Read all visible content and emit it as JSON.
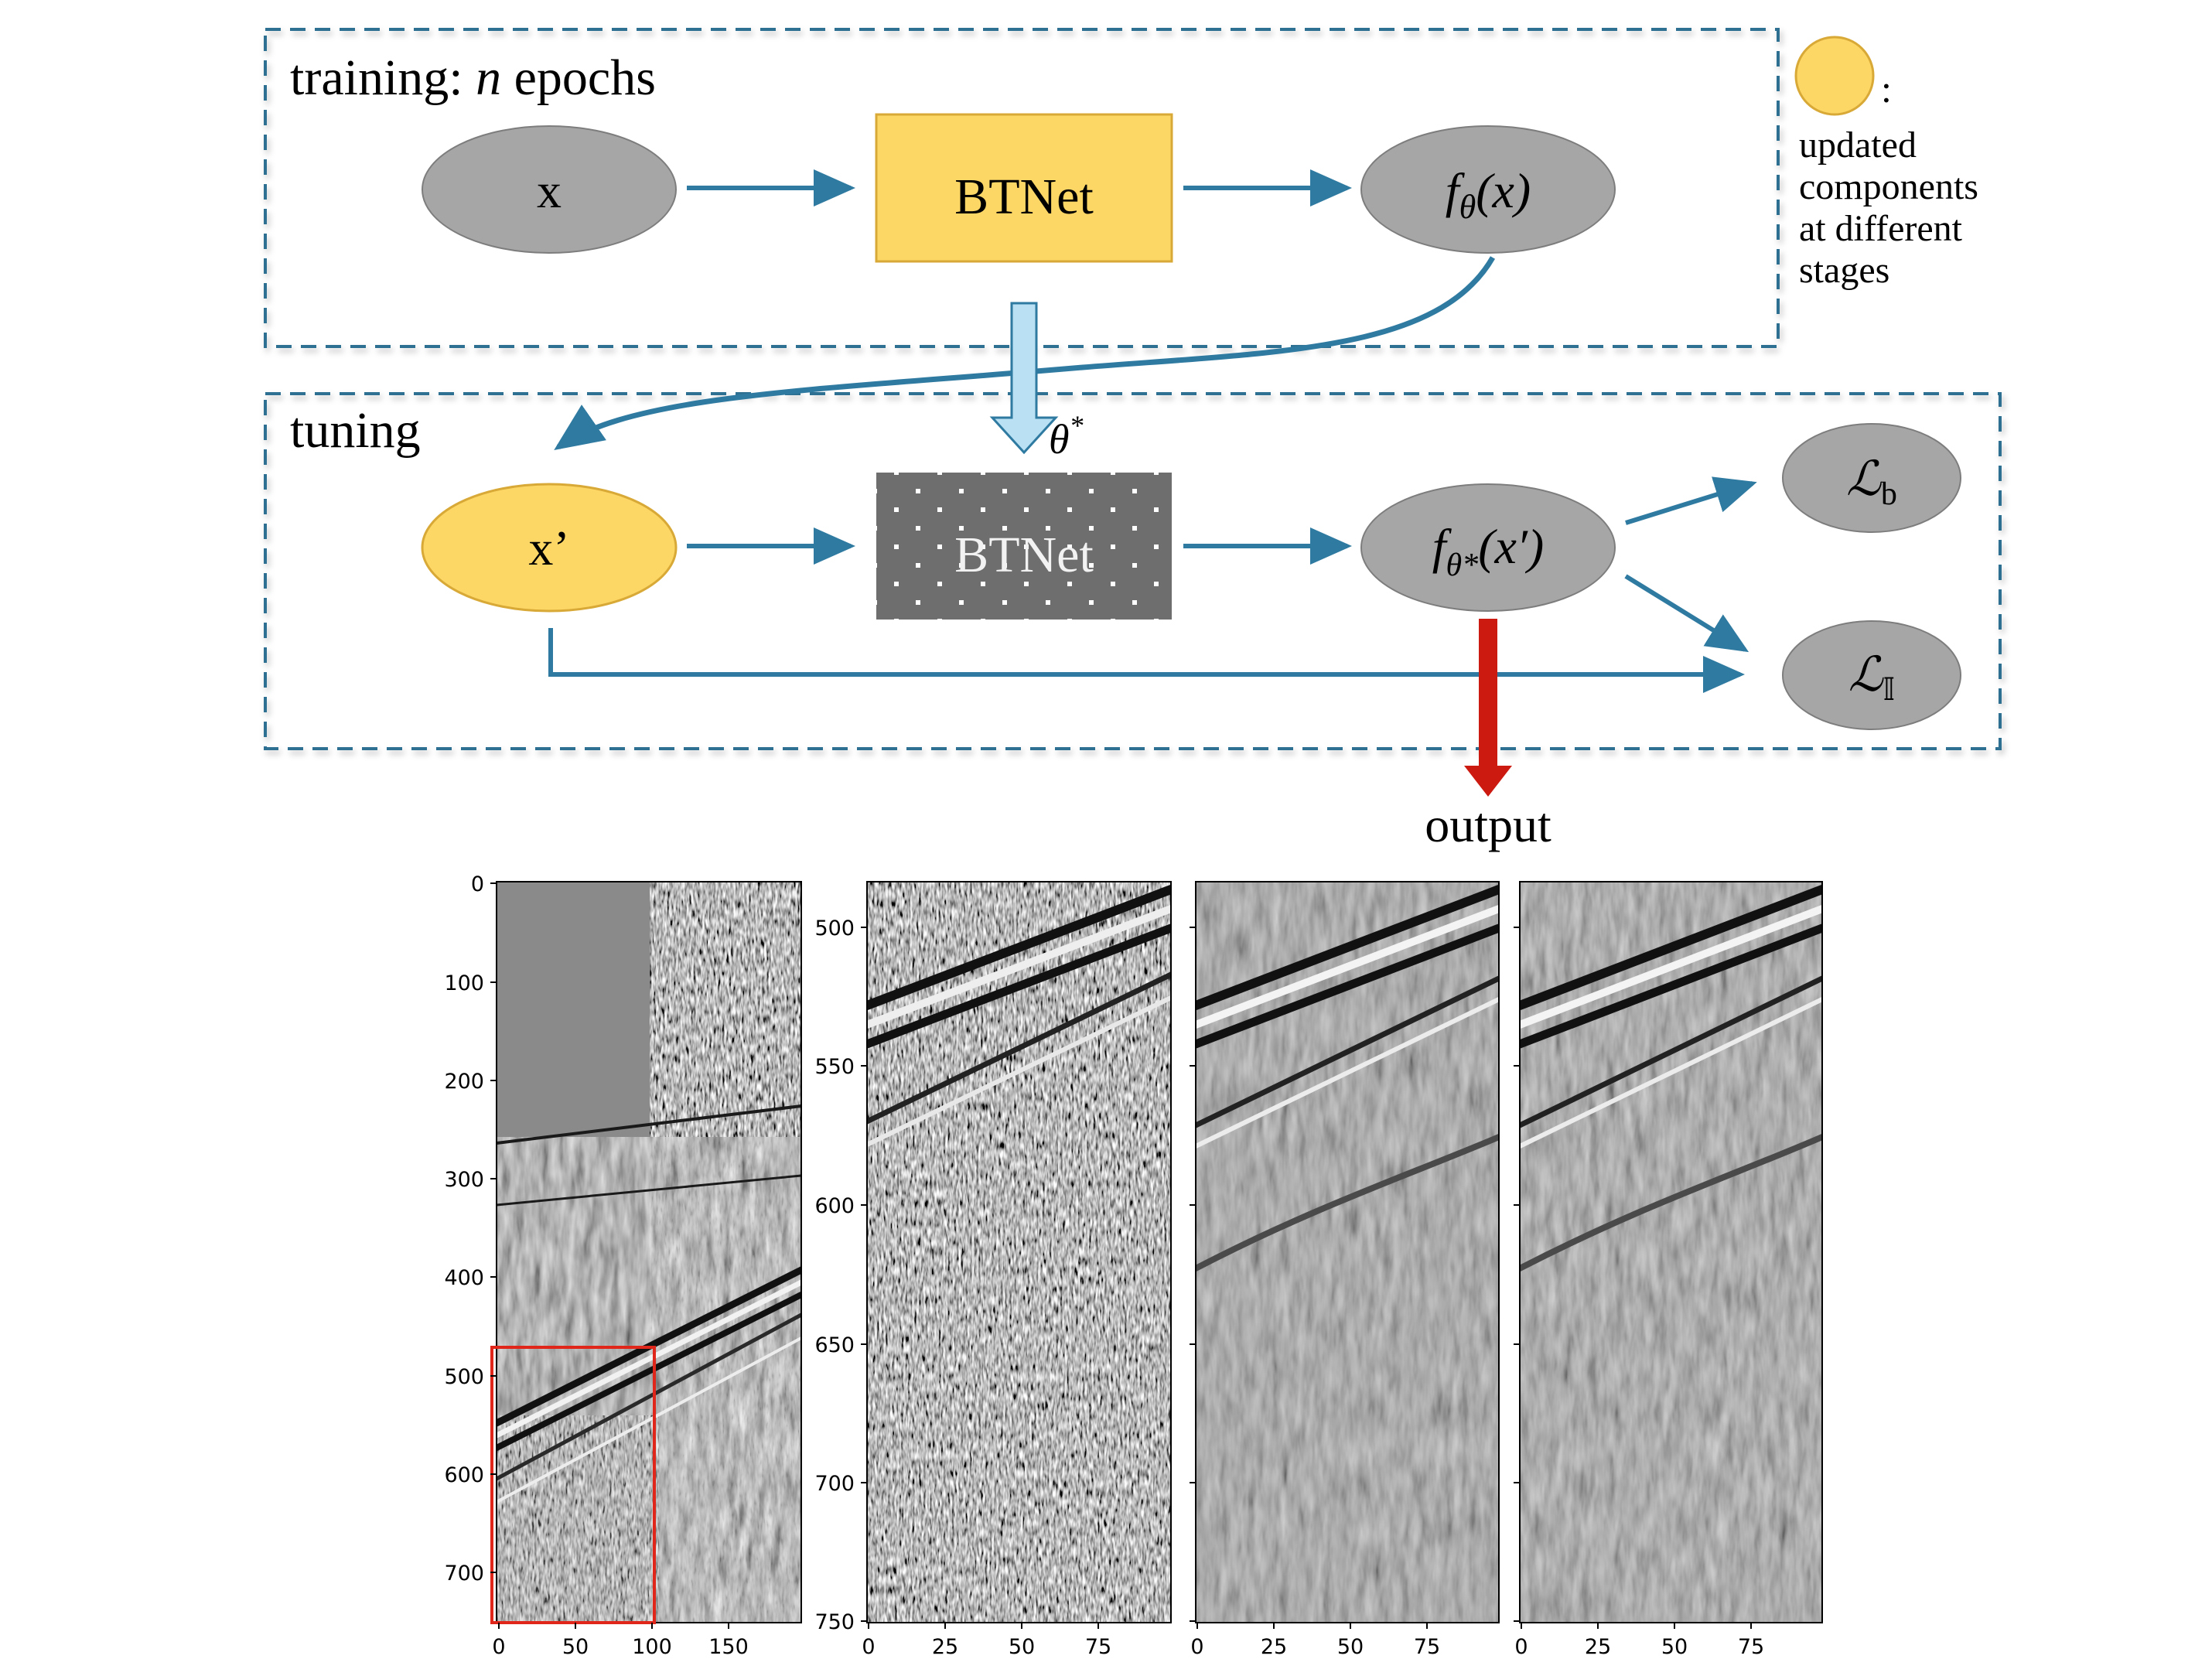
{
  "training": {
    "title_prefix": "training: ",
    "title_var": "n",
    "title_suffix": " epochs"
  },
  "tuning": {
    "title": "tuning"
  },
  "nodes": {
    "x": "x",
    "btnet": "BTNet",
    "btnet_frozen": "BTNet",
    "x_prime": "x’",
    "f_theta": {
      "f": "f",
      "sub": "θ",
      "arg": "(x)"
    },
    "f_theta_star": {
      "f": "f",
      "sub": "θ*",
      "arg": "(x′)"
    },
    "theta_star": {
      "base": "θ",
      "sup": "*"
    },
    "loss_b": {
      "L": "ℒ",
      "sub": "b"
    },
    "loss_I": {
      "L": "ℒ",
      "sub": "𝕀"
    }
  },
  "legend": {
    "colon": ":",
    "lines": [
      "updated",
      "components",
      "at different",
      "stages"
    ]
  },
  "output_label": "output",
  "colors": {
    "dash_border": "#2e6f92",
    "arrow": "#2f7aa1",
    "gray_node": "#a6a6a6",
    "yellow_node": "#fdd766",
    "yellow_stroke": "#d8a936",
    "frozen_block": "#6e6e6e",
    "output_arrow": "#cc1a10"
  },
  "panels": [
    {
      "y_ticks": [
        "0",
        "100",
        "200",
        "300",
        "400",
        "500",
        "600",
        "700"
      ],
      "x_ticks": [
        "0",
        "50",
        "100",
        "150"
      ]
    },
    {
      "y_ticks": [
        "500",
        "550",
        "600",
        "650",
        "700",
        "750"
      ],
      "x_ticks": [
        "0",
        "25",
        "50",
        "75"
      ]
    },
    {
      "y_ticks": [],
      "x_ticks": [
        "0",
        "25",
        "50",
        "75"
      ]
    },
    {
      "y_ticks": [],
      "x_ticks": [
        "0",
        "25",
        "50",
        "75"
      ]
    }
  ]
}
